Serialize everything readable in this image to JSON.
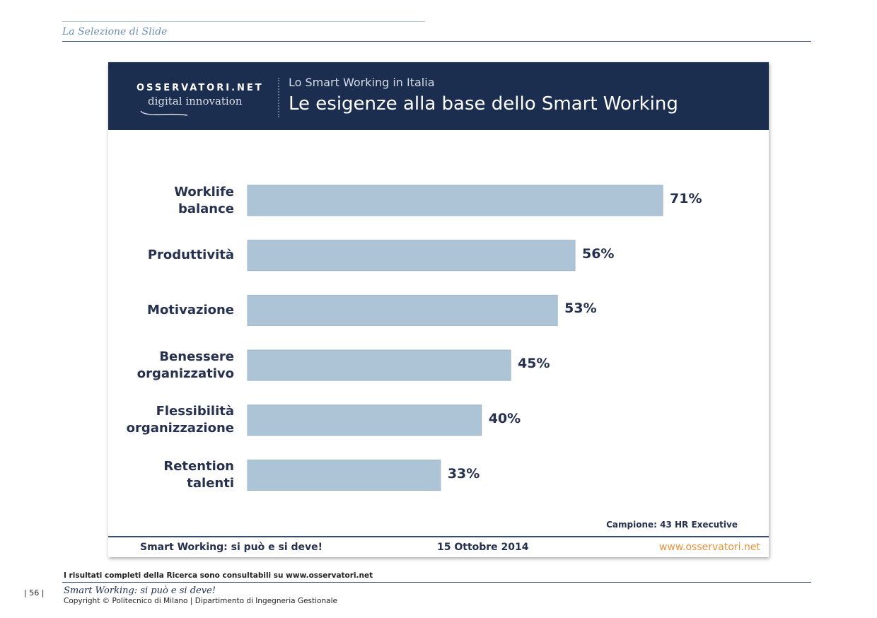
{
  "page": {
    "section": "La Selezione di Slide",
    "note": "I risultati completi della Ricerca sono consultabili su www.osservatori.net",
    "page_number": "| 56 |",
    "footer_title": "Smart Working: si può e si deve!",
    "copyright": "Copyright © Politecnico di Milano | Dipartimento di Ingegneria Gestionale"
  },
  "slide": {
    "logo_top": "OSSERVATORI.NET",
    "logo_bottom": "digital innovation",
    "subtitle": "Lo Smart Working in Italia",
    "sample": "Campione: 43 HR Executive",
    "footer_left": "Smart Working: si può e si deve!",
    "footer_date": "15 Ottobre 2014",
    "footer_url": "www.osservatori.net"
  },
  "colors": {
    "bar": "#adc3d6",
    "banner": "#1b2e50"
  },
  "chart_data": {
    "type": "bar",
    "orientation": "horizontal",
    "title": "Le esigenze alla base dello Smart Working",
    "categories": [
      [
        "Worklife",
        "balance"
      ],
      [
        "Produttività"
      ],
      [
        "Motivazione"
      ],
      [
        "Benessere",
        "organizzativo"
      ],
      [
        "Flessibilità",
        "organizzazione"
      ],
      [
        "Retention",
        "talenti"
      ]
    ],
    "values": [
      71,
      56,
      53,
      45,
      40,
      33
    ],
    "value_labels": [
      "71%",
      "56%",
      "53%",
      "45%",
      "40%",
      "33%"
    ],
    "unit": "%",
    "xlim": [
      0,
      71
    ],
    "grid": false
  }
}
